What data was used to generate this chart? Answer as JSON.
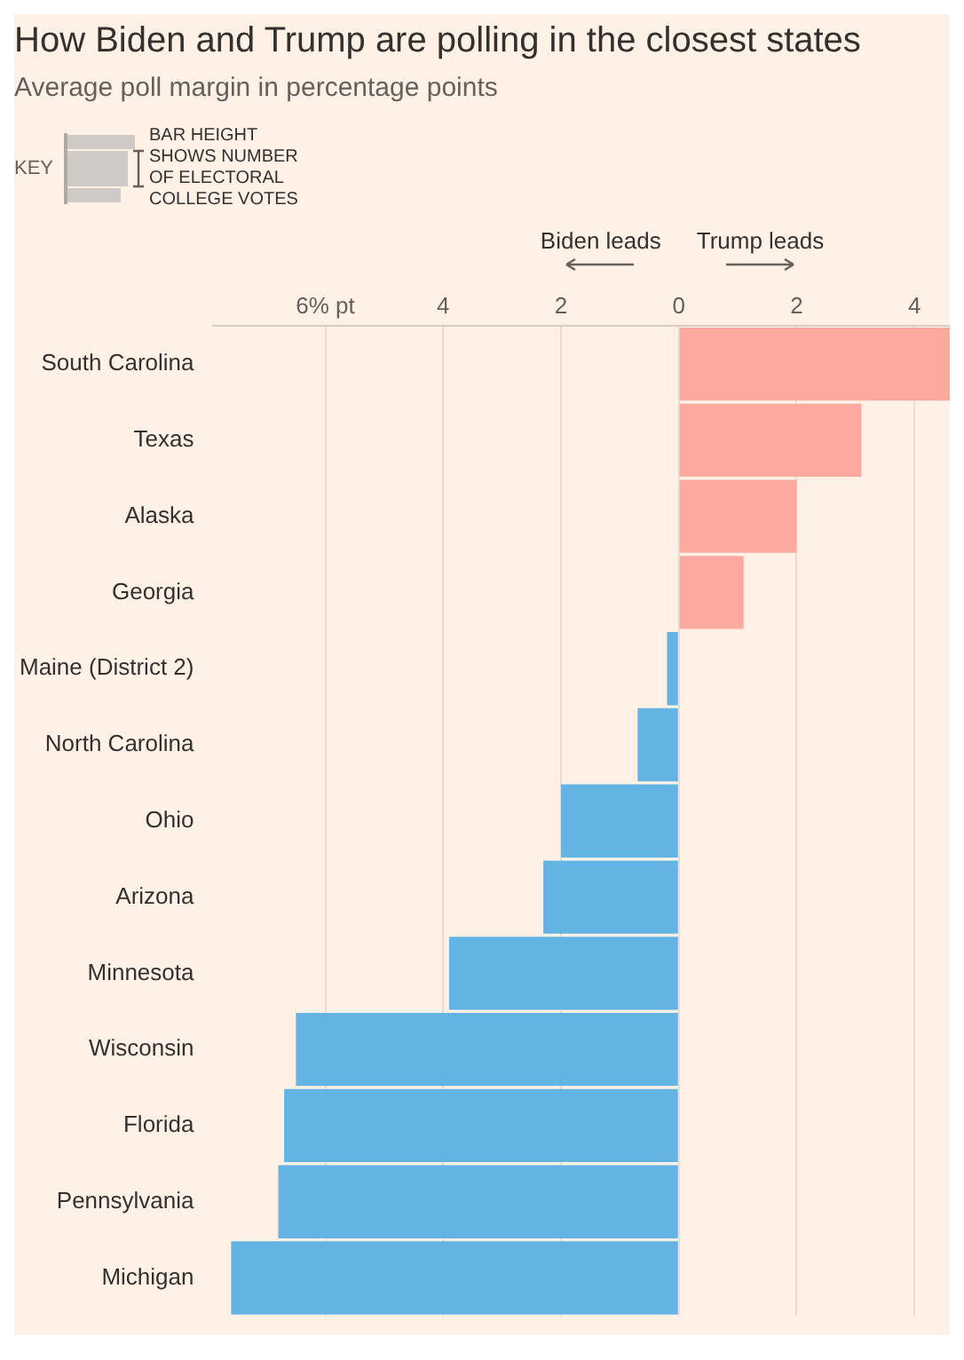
{
  "chart_data": {
    "type": "bar",
    "orientation": "horizontal",
    "title": "How Biden and Trump are polling in the closest states",
    "subtitle": "Average poll margin in percentage points",
    "categories": [
      "South Carolina",
      "Texas",
      "Alaska",
      "Georgia",
      "Maine (District 2)",
      "North Carolina",
      "Ohio",
      "Arizona",
      "Minnesota",
      "Wisconsin",
      "Florida",
      "Pennsylvania",
      "Michigan"
    ],
    "values": [
      4.6,
      3.1,
      2.0,
      1.1,
      -0.2,
      -0.7,
      -2.0,
      -2.3,
      -3.9,
      -6.5,
      -6.7,
      -6.8,
      -7.6
    ],
    "colors": [
      "#fcaa9f",
      "#fcaa9f",
      "#fcaa9f",
      "#fcaa9f",
      "#63b3e3",
      "#63b3e3",
      "#63b3e3",
      "#63b3e3",
      "#63b3e3",
      "#63b3e3",
      "#63b3e3",
      "#63b3e3",
      "#63b3e3"
    ],
    "xlim": [
      -7.9,
      4.6
    ],
    "xticks": [
      {
        "value": -6,
        "label": "6% pt"
      },
      {
        "value": -4,
        "label": "4"
      },
      {
        "value": -2,
        "label": "2"
      },
      0,
      2,
      4
    ],
    "grid": "x",
    "annotations": [
      "Biden leads",
      "Trump leads",
      "KEY",
      "BAR HEIGHT SHOWS NUMBER OF ELECTORAL COLLEGE VOTES"
    ]
  }
}
